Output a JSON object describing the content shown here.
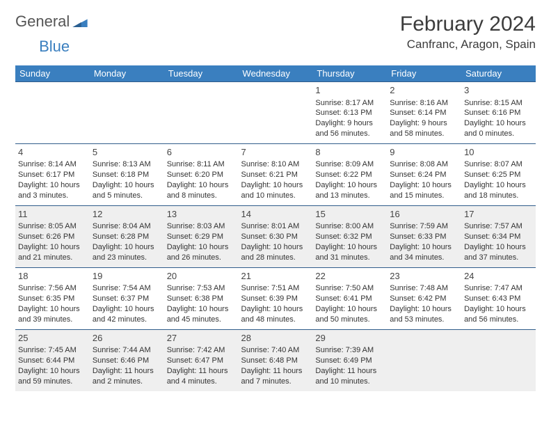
{
  "brand": {
    "part1": "General",
    "part2": "Blue"
  },
  "title": "February 2024",
  "location": "Canfranc, Aragon, Spain",
  "theme": {
    "header_bg": "#3a7fbf",
    "header_fg": "#ffffff",
    "rule_color": "#2f5c8a",
    "shade_bg": "#efefef",
    "text_color": "#333333",
    "daynum_fontsize": 13,
    "cell_fontsize": 11,
    "title_fontsize": 30,
    "location_fontsize": 17
  },
  "day_headers": [
    "Sunday",
    "Monday",
    "Tuesday",
    "Wednesday",
    "Thursday",
    "Friday",
    "Saturday"
  ],
  "weeks": [
    {
      "shaded": false,
      "cells": [
        null,
        null,
        null,
        null,
        {
          "d": "1",
          "sr": "8:17 AM",
          "ss": "6:13 PM",
          "dl": "9 hours and 56 minutes."
        },
        {
          "d": "2",
          "sr": "8:16 AM",
          "ss": "6:14 PM",
          "dl": "9 hours and 58 minutes."
        },
        {
          "d": "3",
          "sr": "8:15 AM",
          "ss": "6:16 PM",
          "dl": "10 hours and 0 minutes."
        }
      ]
    },
    {
      "shaded": false,
      "cells": [
        {
          "d": "4",
          "sr": "8:14 AM",
          "ss": "6:17 PM",
          "dl": "10 hours and 3 minutes."
        },
        {
          "d": "5",
          "sr": "8:13 AM",
          "ss": "6:18 PM",
          "dl": "10 hours and 5 minutes."
        },
        {
          "d": "6",
          "sr": "8:11 AM",
          "ss": "6:20 PM",
          "dl": "10 hours and 8 minutes."
        },
        {
          "d": "7",
          "sr": "8:10 AM",
          "ss": "6:21 PM",
          "dl": "10 hours and 10 minutes."
        },
        {
          "d": "8",
          "sr": "8:09 AM",
          "ss": "6:22 PM",
          "dl": "10 hours and 13 minutes."
        },
        {
          "d": "9",
          "sr": "8:08 AM",
          "ss": "6:24 PM",
          "dl": "10 hours and 15 minutes."
        },
        {
          "d": "10",
          "sr": "8:07 AM",
          "ss": "6:25 PM",
          "dl": "10 hours and 18 minutes."
        }
      ]
    },
    {
      "shaded": true,
      "cells": [
        {
          "d": "11",
          "sr": "8:05 AM",
          "ss": "6:26 PM",
          "dl": "10 hours and 21 minutes."
        },
        {
          "d": "12",
          "sr": "8:04 AM",
          "ss": "6:28 PM",
          "dl": "10 hours and 23 minutes."
        },
        {
          "d": "13",
          "sr": "8:03 AM",
          "ss": "6:29 PM",
          "dl": "10 hours and 26 minutes."
        },
        {
          "d": "14",
          "sr": "8:01 AM",
          "ss": "6:30 PM",
          "dl": "10 hours and 28 minutes."
        },
        {
          "d": "15",
          "sr": "8:00 AM",
          "ss": "6:32 PM",
          "dl": "10 hours and 31 minutes."
        },
        {
          "d": "16",
          "sr": "7:59 AM",
          "ss": "6:33 PM",
          "dl": "10 hours and 34 minutes."
        },
        {
          "d": "17",
          "sr": "7:57 AM",
          "ss": "6:34 PM",
          "dl": "10 hours and 37 minutes."
        }
      ]
    },
    {
      "shaded": false,
      "cells": [
        {
          "d": "18",
          "sr": "7:56 AM",
          "ss": "6:35 PM",
          "dl": "10 hours and 39 minutes."
        },
        {
          "d": "19",
          "sr": "7:54 AM",
          "ss": "6:37 PM",
          "dl": "10 hours and 42 minutes."
        },
        {
          "d": "20",
          "sr": "7:53 AM",
          "ss": "6:38 PM",
          "dl": "10 hours and 45 minutes."
        },
        {
          "d": "21",
          "sr": "7:51 AM",
          "ss": "6:39 PM",
          "dl": "10 hours and 48 minutes."
        },
        {
          "d": "22",
          "sr": "7:50 AM",
          "ss": "6:41 PM",
          "dl": "10 hours and 50 minutes."
        },
        {
          "d": "23",
          "sr": "7:48 AM",
          "ss": "6:42 PM",
          "dl": "10 hours and 53 minutes."
        },
        {
          "d": "24",
          "sr": "7:47 AM",
          "ss": "6:43 PM",
          "dl": "10 hours and 56 minutes."
        }
      ]
    },
    {
      "shaded": true,
      "cells": [
        {
          "d": "25",
          "sr": "7:45 AM",
          "ss": "6:44 PM",
          "dl": "10 hours and 59 minutes."
        },
        {
          "d": "26",
          "sr": "7:44 AM",
          "ss": "6:46 PM",
          "dl": "11 hours and 2 minutes."
        },
        {
          "d": "27",
          "sr": "7:42 AM",
          "ss": "6:47 PM",
          "dl": "11 hours and 4 minutes."
        },
        {
          "d": "28",
          "sr": "7:40 AM",
          "ss": "6:48 PM",
          "dl": "11 hours and 7 minutes."
        },
        {
          "d": "29",
          "sr": "7:39 AM",
          "ss": "6:49 PM",
          "dl": "11 hours and 10 minutes."
        },
        null,
        null
      ]
    }
  ],
  "labels": {
    "sunrise": "Sunrise:",
    "sunset": "Sunset:",
    "daylight": "Daylight:"
  }
}
